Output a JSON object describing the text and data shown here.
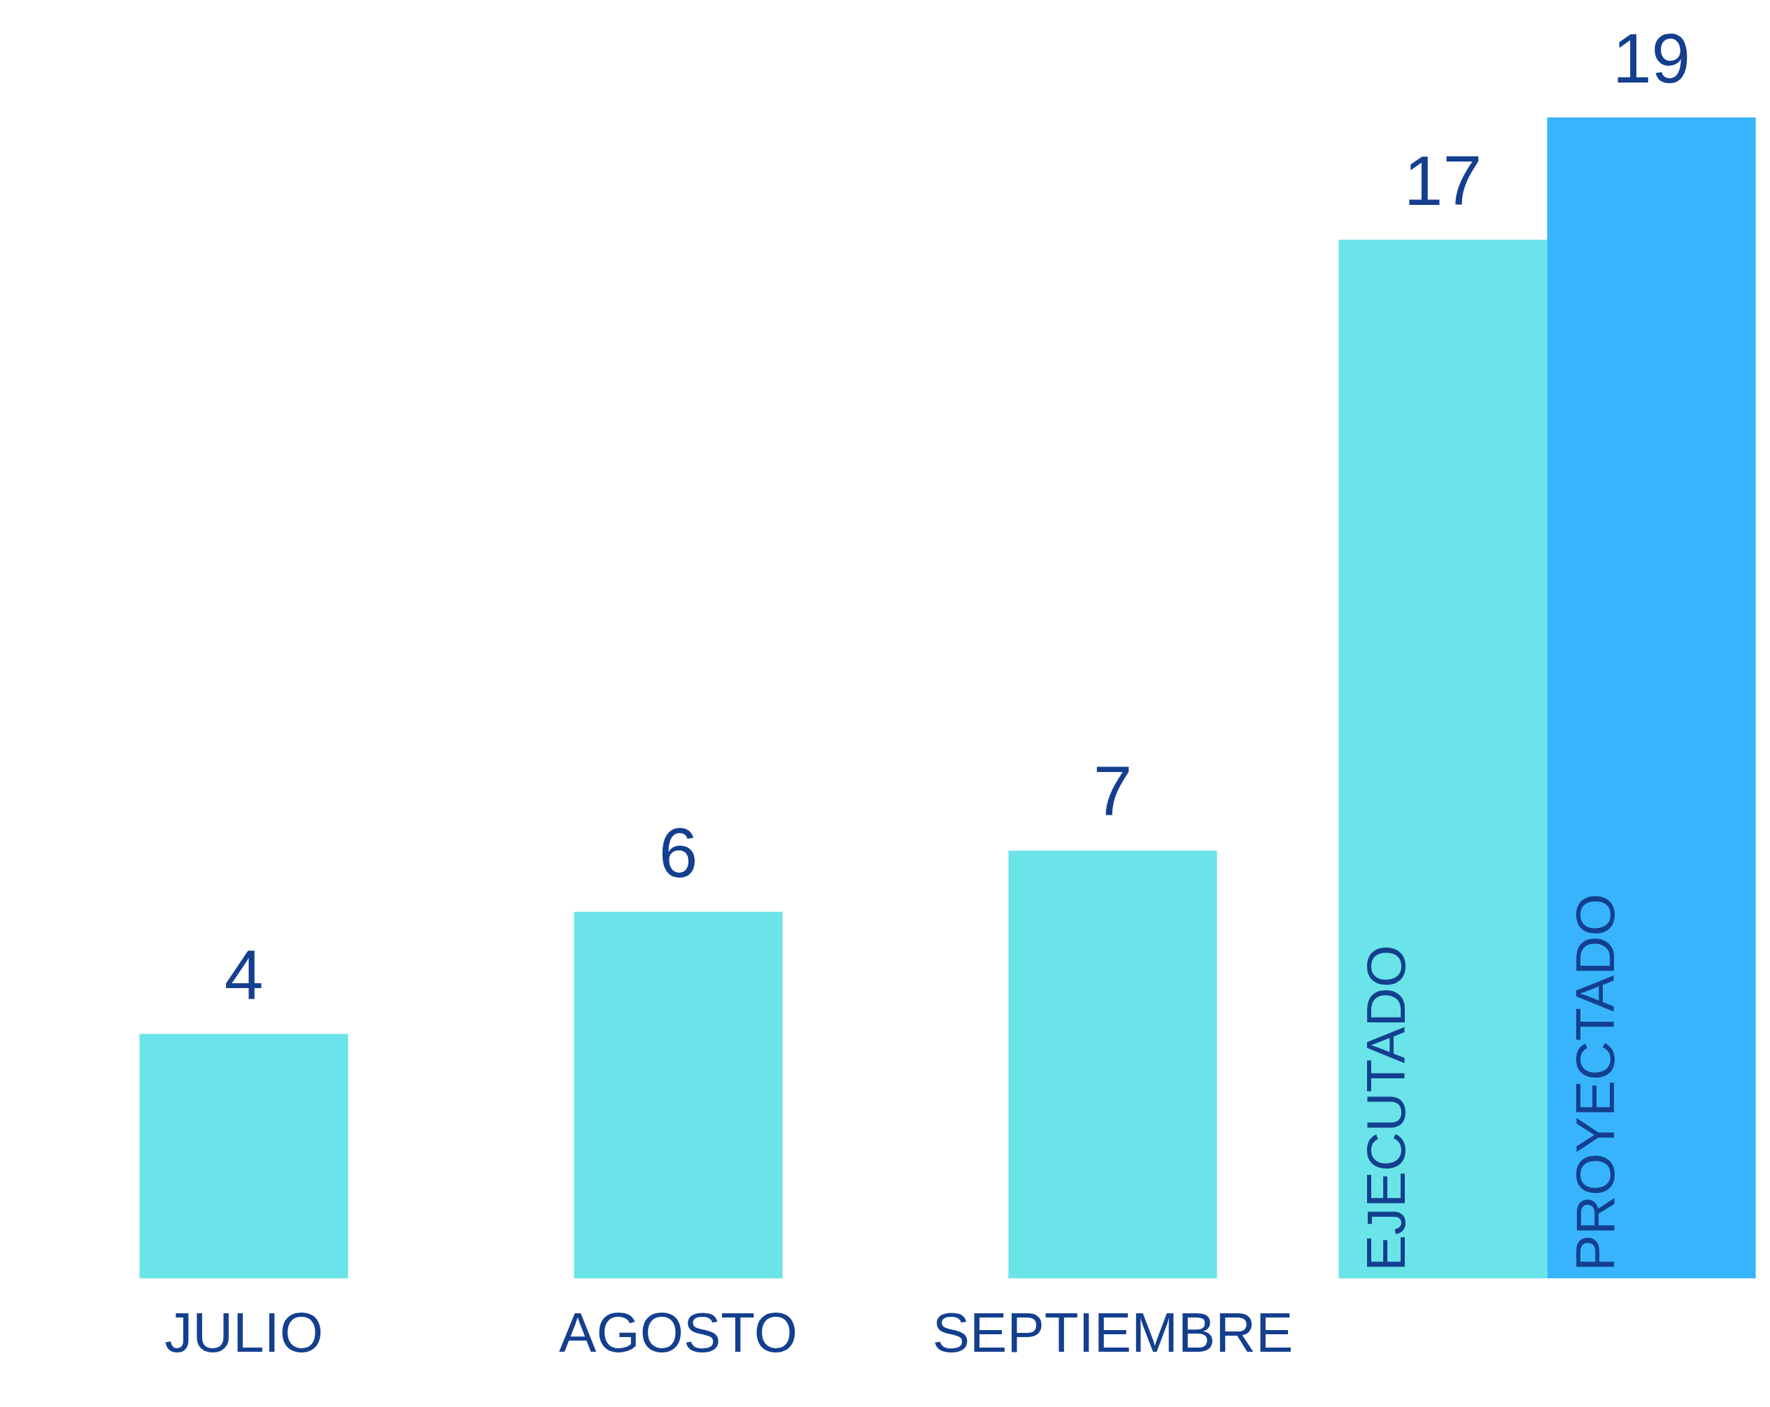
{
  "chart_data": {
    "type": "bar",
    "categories": [
      "JULIO",
      "AGOSTO",
      "SEPTIEMBRE",
      null
    ],
    "series": [
      {
        "name": "EJECUTADO",
        "color": "#6ae4e8",
        "values": [
          4,
          6,
          7,
          17
        ]
      },
      {
        "name": "PROYECTADO",
        "color": "#38b4fc",
        "values": [
          null,
          null,
          null,
          19
        ]
      }
    ],
    "data_labels": true,
    "grid": false,
    "legend": false
  }
}
